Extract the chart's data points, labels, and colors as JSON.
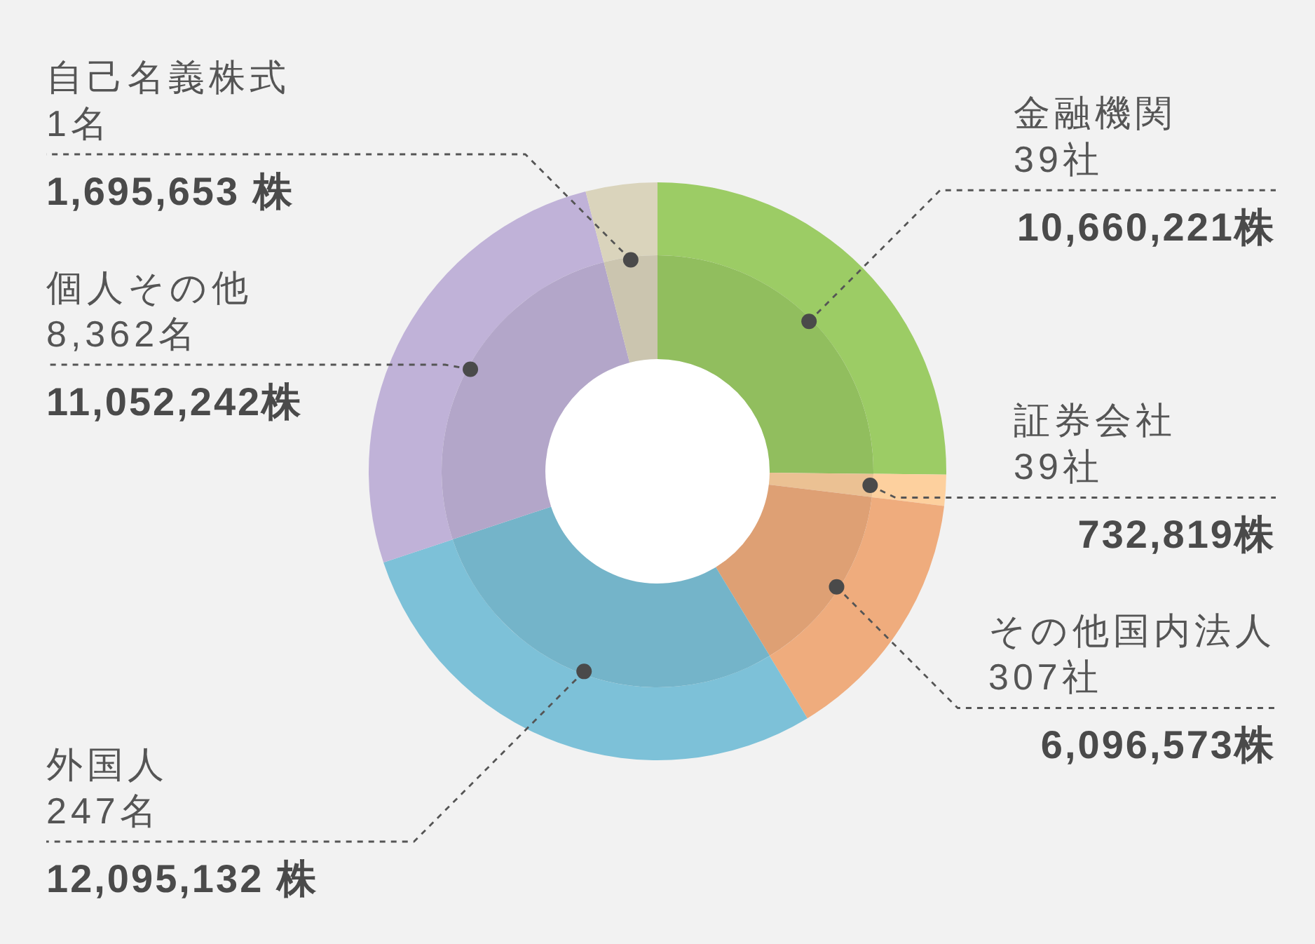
{
  "chart_data": {
    "type": "donut",
    "categories": [
      "金融機関\n39社",
      "証券会社\n39社",
      "その他国内法人\n307社",
      "外国人\n247名",
      "個人その他\n8,362名",
      "自己名義株式\n1名"
    ],
    "series": [
      {
        "values": [
          10660221,
          732819,
          6096573,
          12095132,
          11052242,
          1695653
        ],
        "colors": [
          "#9ccc65",
          "#fdd09e",
          "#efac7d",
          "#7dc1d8",
          "#c0b2d8",
          "#dad4bc"
        ],
        "value_labels": [
          "10,660,221株",
          "732,819株",
          "6,096,573株",
          "12,095,132 株",
          "11,052,242株",
          "1,695,653 株"
        ]
      },
      {
        "values": [
          25.2,
          1.7,
          14.4,
          28.6,
          26.1,
          4.0
        ],
        "colors": [
          "#91be5e",
          "#ebc193",
          "#dea074",
          "#74b4c9",
          "#b3a6c9",
          "#cbc5af"
        ]
      }
    ]
  }
}
